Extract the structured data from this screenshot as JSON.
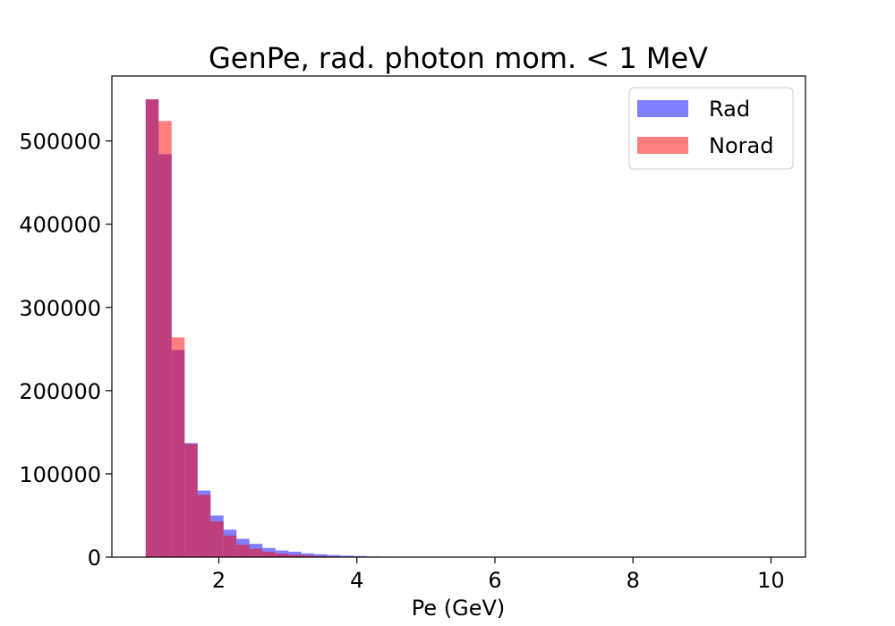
{
  "chart_data": {
    "type": "bar",
    "title": "GenPe, rad. photon mom. < 1 MeV",
    "xlabel": "Pe (GeV)",
    "ylabel": "",
    "xlim": [
      0.45,
      10.5
    ],
    "ylim": [
      0,
      578000
    ],
    "x_ticks": [
      2,
      4,
      6,
      8,
      10
    ],
    "y_ticks": [
      0,
      100000,
      200000,
      300000,
      400000,
      500000
    ],
    "x_tick_labels": [
      "2",
      "4",
      "6",
      "8",
      "10"
    ],
    "y_tick_labels": [
      "0",
      "100000",
      "200000",
      "300000",
      "400000",
      "500000"
    ],
    "grid": false,
    "legend_position": "top-right",
    "bin_edges": [
      0.94,
      1.128,
      1.316,
      1.504,
      1.692,
      1.88,
      2.068,
      2.256,
      2.444,
      2.632,
      2.82,
      3.008,
      3.196,
      3.384,
      3.572,
      3.76,
      3.948,
      4.136,
      4.324,
      4.512
    ],
    "series": [
      {
        "name": "Rad",
        "color": "#0000ff",
        "alpha": 0.5,
        "values": [
          550000,
          484000,
          249000,
          137000,
          80000,
          50000,
          33000,
          22000,
          16000,
          11000,
          8000,
          6500,
          4500,
          3500,
          2500,
          1800,
          1300,
          900,
          600
        ]
      },
      {
        "name": "Norad",
        "color": "#ff0000",
        "alpha": 0.5,
        "values": [
          550000,
          524000,
          264000,
          136000,
          75000,
          43000,
          26000,
          15000,
          10000,
          6500,
          4200,
          3000,
          2000,
          1300,
          800,
          500,
          300,
          200,
          100
        ]
      }
    ]
  }
}
